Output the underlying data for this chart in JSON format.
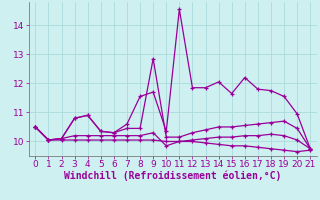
{
  "x": [
    0,
    1,
    2,
    3,
    4,
    5,
    6,
    7,
    8,
    9,
    10,
    11,
    12,
    13,
    14,
    15,
    16,
    17,
    18,
    19,
    20,
    21
  ],
  "line1": [
    10.5,
    10.05,
    10.1,
    10.8,
    10.9,
    10.35,
    10.3,
    10.6,
    11.55,
    11.7,
    10.35,
    14.55,
    11.85,
    11.85,
    12.05,
    11.65,
    12.2,
    11.8,
    11.75,
    11.55,
    10.95,
    9.75
  ],
  "line2": [
    10.5,
    10.05,
    10.1,
    10.8,
    10.9,
    10.35,
    10.3,
    10.45,
    10.45,
    12.85,
    10.15,
    10.15,
    10.3,
    10.4,
    10.5,
    10.5,
    10.55,
    10.6,
    10.65,
    10.7,
    10.45,
    9.75
  ],
  "line3": [
    10.5,
    10.05,
    10.1,
    10.2,
    10.2,
    10.2,
    10.2,
    10.2,
    10.2,
    10.3,
    9.85,
    10.0,
    10.05,
    10.1,
    10.15,
    10.15,
    10.2,
    10.2,
    10.25,
    10.2,
    10.05,
    9.75
  ],
  "line4": [
    10.5,
    10.05,
    10.05,
    10.05,
    10.05,
    10.05,
    10.05,
    10.05,
    10.05,
    10.05,
    10.0,
    10.0,
    10.0,
    9.95,
    9.9,
    9.85,
    9.85,
    9.8,
    9.75,
    9.7,
    9.65,
    9.7
  ],
  "color": "#990099",
  "background": "#cff0f0",
  "grid_color": "#aadada",
  "xlabel": "Windchill (Refroidissement éolien,°C)",
  "xlim": [
    -0.5,
    21.5
  ],
  "ylim": [
    9.5,
    14.8
  ],
  "xticks": [
    0,
    1,
    2,
    3,
    4,
    5,
    6,
    7,
    8,
    9,
    10,
    11,
    12,
    13,
    14,
    15,
    16,
    17,
    18,
    19,
    20,
    21
  ],
  "yticks": [
    10,
    11,
    12,
    13,
    14
  ],
  "fontsize_label": 7,
  "fontsize_tick": 6.5
}
